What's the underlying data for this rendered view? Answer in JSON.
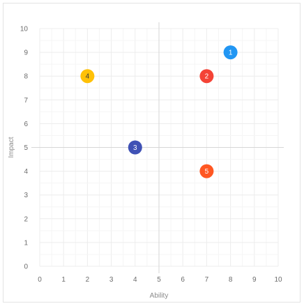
{
  "chart_data": {
    "type": "scatter",
    "title": "",
    "xlabel": "Ability",
    "ylabel": "Impact",
    "xlim": [
      0,
      10
    ],
    "ylim": [
      0,
      10
    ],
    "xticks": [
      "0",
      "1",
      "2",
      "3",
      "4",
      "5",
      "6",
      "7",
      "8",
      "9",
      "10"
    ],
    "yticks": [
      "0",
      "1",
      "2",
      "3",
      "4",
      "5",
      "6",
      "7",
      "8",
      "9",
      "10"
    ],
    "grid": true,
    "reference_lines": {
      "x": 5,
      "y": 5
    },
    "points": [
      {
        "label": "1",
        "x": 8,
        "y": 9,
        "color": "#2196f3",
        "text_color": "#ffffff"
      },
      {
        "label": "2",
        "x": 7,
        "y": 8,
        "color": "#f44336",
        "text_color": "#ffffff"
      },
      {
        "label": "3",
        "x": 4,
        "y": 5,
        "color": "#3f51b5",
        "text_color": "#ffffff"
      },
      {
        "label": "4",
        "x": 2,
        "y": 8,
        "color": "#ffc107",
        "text_color": "#3a3a3a"
      },
      {
        "label": "5",
        "x": 7,
        "y": 4,
        "color": "#ff5722",
        "text_color": "#ffffff"
      }
    ]
  }
}
